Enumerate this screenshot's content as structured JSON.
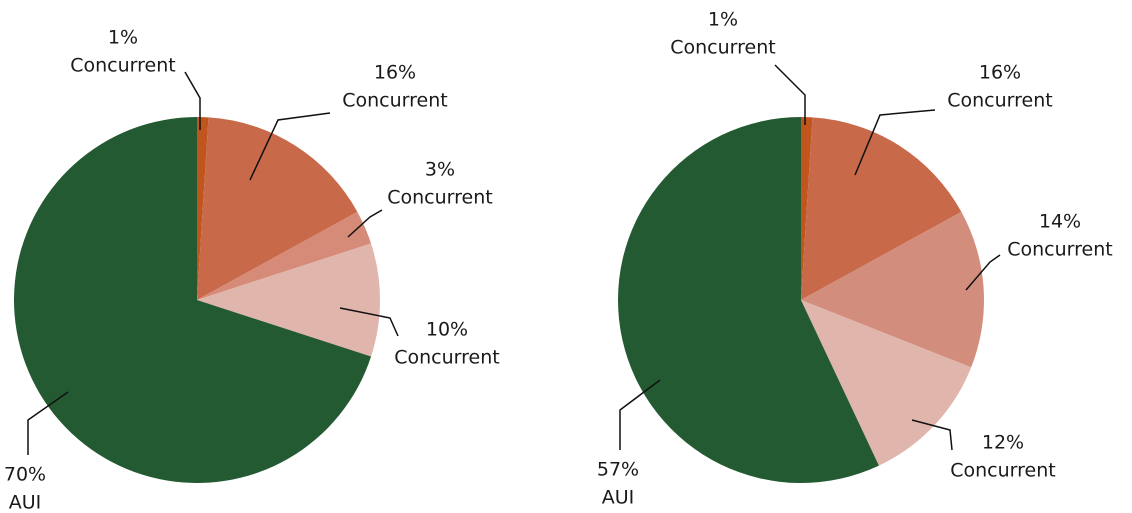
{
  "chart_data": [
    {
      "type": "pie",
      "categories": [
        "Concurrent",
        "Concurrent",
        "Concurrent",
        "Concurrent",
        "AUI"
      ],
      "values": [
        1,
        16,
        3,
        10,
        70
      ],
      "value_labels": [
        "1%",
        "16%",
        "3%",
        "10%",
        "70%"
      ],
      "colors": [
        "#c0561e",
        "#c8694a",
        "#d68b78",
        "#dfb5ac",
        "#245a32"
      ]
    },
    {
      "type": "pie",
      "categories": [
        "Concurrent",
        "Concurrent",
        "Concurrent",
        "Concurrent",
        "AUI"
      ],
      "values": [
        1,
        16,
        14,
        12,
        57
      ],
      "value_labels": [
        "1%",
        "16%",
        "14%",
        "12%",
        "57%"
      ],
      "colors": [
        "#c0561e",
        "#c8694a",
        "#d38d7d",
        "#dfb5ac",
        "#245a32"
      ]
    }
  ]
}
